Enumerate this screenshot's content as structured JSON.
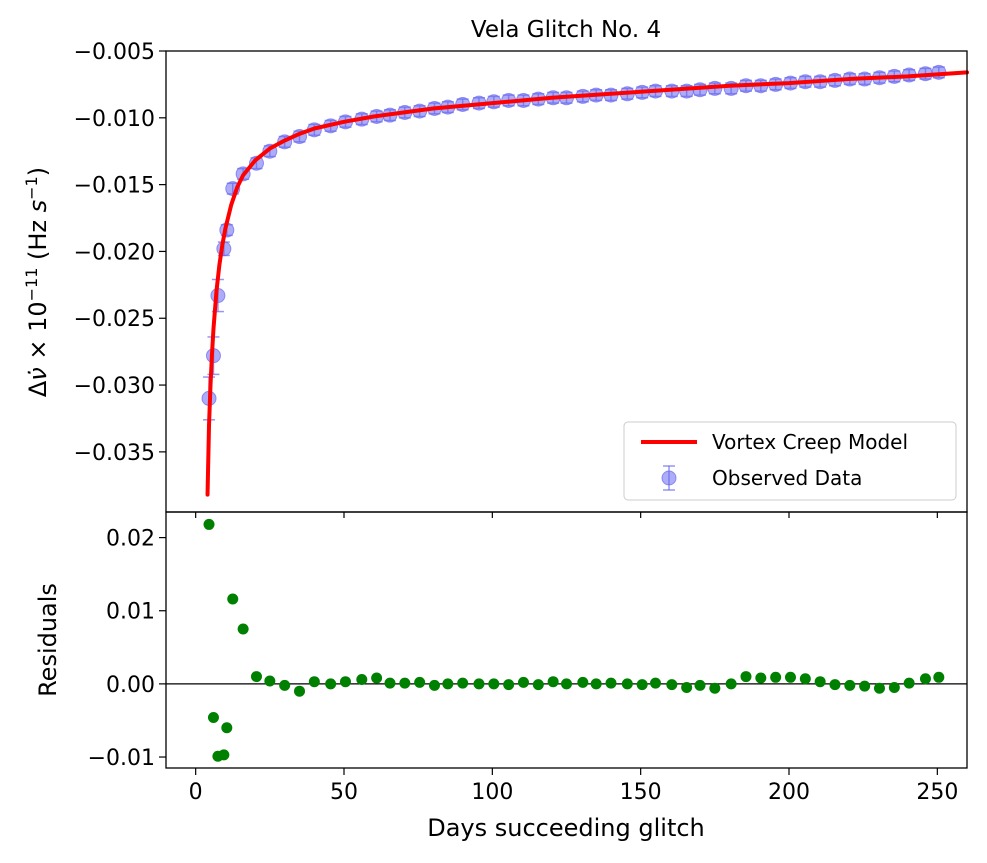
{
  "chart_data": [
    {
      "type": "scatter",
      "panel": "main",
      "title": "Vela Glitch No. 4",
      "xlabel": "Days succeeding glitch",
      "ylabel_parts": [
        "Δ",
        "ν̇",
        " × 10",
        "−11",
        " (Hz ",
        "s",
        "−1",
        ")"
      ],
      "xlim": [
        -10,
        260
      ],
      "ylim": [
        -0.0395,
        -0.005
      ],
      "yticks": [
        -0.035,
        -0.03,
        -0.025,
        -0.02,
        -0.015,
        -0.01,
        -0.005
      ],
      "ytick_labels": [
        "−0.035",
        "−0.030",
        "−0.025",
        "−0.020",
        "−0.015",
        "−0.010",
        "−0.005"
      ],
      "grid": false,
      "legend": {
        "placement": "lower-right",
        "entries": [
          "Vortex Creep Model",
          "Observed Data"
        ]
      },
      "series": [
        {
          "name": "Observed Data",
          "kind": "errorbar",
          "color": "#6a6af0",
          "x": [
            4.5,
            6,
            7.5,
            9.5,
            10.5,
            12.5,
            16,
            20.5,
            25,
            30,
            35,
            40,
            45.5,
            50.5,
            56,
            61,
            65.5,
            70.5,
            75.5,
            80.5,
            85,
            90,
            95.5,
            100.5,
            105.5,
            110.5,
            115.5,
            120.5,
            125,
            130.5,
            135,
            140,
            145.5,
            150.5,
            155,
            160.5,
            165.5,
            170,
            175,
            180.5,
            185.5,
            190.5,
            195.5,
            200.5,
            205.5,
            210.5,
            215.5,
            220.5,
            225.5,
            230.5,
            235.5,
            240.5,
            246,
            250.5
          ],
          "y": [
            -0.031,
            -0.0278,
            -0.0233,
            -0.0198,
            -0.0184,
            -0.0153,
            -0.0142,
            -0.0134,
            -0.0125,
            -0.0118,
            -0.0114,
            -0.0109,
            -0.0106,
            -0.0103,
            -0.0101,
            -0.0099,
            -0.0098,
            -0.0096,
            -0.0095,
            -0.0093,
            -0.0092,
            -0.009,
            -0.0089,
            -0.0088,
            -0.0087,
            -0.0087,
            -0.0086,
            -0.0085,
            -0.0085,
            -0.0084,
            -0.0083,
            -0.0083,
            -0.0082,
            -0.0081,
            -0.008,
            -0.008,
            -0.008,
            -0.0079,
            -0.0078,
            -0.0078,
            -0.0076,
            -0.0076,
            -0.0075,
            -0.0074,
            -0.0073,
            -0.0073,
            -0.0072,
            -0.0071,
            -0.0071,
            -0.007,
            -0.0069,
            -0.0068,
            -0.0067,
            -0.0066
          ],
          "yerr": [
            0.0016,
            0.0014,
            0.0012,
            0.0005,
            0.0004,
            0.0004,
            0.0004,
            0.0004,
            0.0004,
            0.0004,
            0.0004,
            0.0004,
            0.0004,
            0.0004,
            0.0004,
            0.0004,
            0.0004,
            0.0004,
            0.0004,
            0.0004,
            0.0004,
            0.0004,
            0.0004,
            0.0004,
            0.0004,
            0.0004,
            0.0004,
            0.0004,
            0.0004,
            0.0004,
            0.0004,
            0.0004,
            0.0004,
            0.0004,
            0.0004,
            0.0004,
            0.0004,
            0.0004,
            0.0004,
            0.0004,
            0.0004,
            0.0004,
            0.0004,
            0.0004,
            0.0004,
            0.0004,
            0.0004,
            0.0004,
            0.0004,
            0.0004,
            0.0004,
            0.0004,
            0.0004,
            0.0004
          ]
        },
        {
          "name": "Vortex Creep Model",
          "kind": "line",
          "color": "#ff0000",
          "x": [
            4,
            4.5,
            5,
            5.5,
            6,
            7,
            8,
            9,
            10,
            12,
            14,
            16,
            20,
            25,
            30,
            35,
            40,
            50,
            60,
            70,
            80,
            100,
            120,
            140,
            160,
            180,
            200,
            220,
            240,
            260
          ],
          "y": [
            -0.0382,
            -0.033,
            -0.03,
            -0.0277,
            -0.0258,
            -0.023,
            -0.021,
            -0.0195,
            -0.0183,
            -0.0165,
            -0.0152,
            -0.0143,
            -0.0132,
            -0.0123,
            -0.0117,
            -0.0112,
            -0.0108,
            -0.0103,
            -0.0099,
            -0.0096,
            -0.0093,
            -0.0089,
            -0.0085,
            -0.0082,
            -0.0079,
            -0.0076,
            -0.0074,
            -0.0071,
            -0.0069,
            -0.0066
          ]
        }
      ]
    },
    {
      "type": "scatter",
      "panel": "residuals",
      "xlabel": "Days succeeding glitch",
      "ylabel": "Residuals",
      "xlim": [
        -10,
        260
      ],
      "ylim": [
        -0.0115,
        0.0235
      ],
      "xticks": [
        0,
        50,
        100,
        150,
        200,
        250
      ],
      "xtick_labels": [
        "0",
        "50",
        "100",
        "150",
        "200",
        "250"
      ],
      "yticks": [
        -0.01,
        0.0,
        0.01,
        0.02
      ],
      "ytick_labels": [
        "−0.01",
        "0.00",
        "0.01",
        "0.02"
      ],
      "reference_line": 0,
      "grid": false,
      "series": [
        {
          "name": "Residuals",
          "color": "#008000",
          "x": [
            4.5,
            6,
            7.5,
            9.5,
            10.5,
            12.5,
            16,
            20.5,
            25,
            30,
            35,
            40,
            45.5,
            50.5,
            56,
            61,
            65.5,
            70.5,
            75.5,
            80.5,
            85,
            90,
            95.5,
            100.5,
            105.5,
            110.5,
            115.5,
            120.5,
            125,
            130.5,
            135,
            140,
            145.5,
            150.5,
            155,
            160.5,
            165.5,
            170,
            175,
            180.5,
            185.5,
            190.5,
            195.5,
            200.5,
            205.5,
            210.5,
            215.5,
            220.5,
            225.5,
            230.5,
            235.5,
            240.5,
            246,
            250.5
          ],
          "y": [
            0.0218,
            -0.0046,
            -0.0099,
            -0.0097,
            -0.006,
            0.0116,
            0.0075,
            0.001,
            0.0004,
            -0.0002,
            -0.001,
            0.0003,
            0.0,
            0.0003,
            0.0006,
            0.0008,
            0.0001,
            0.0001,
            0.0002,
            -0.0002,
            0.0,
            0.0001,
            0.0,
            0.0,
            -0.0001,
            0.0002,
            -0.0001,
            0.0003,
            0.0,
            0.0002,
            0.0,
            0.0001,
            0.0,
            -0.0001,
            0.0001,
            -0.0001,
            -0.0005,
            -0.0002,
            -0.0006,
            0.0,
            0.001,
            0.0008,
            0.0009,
            0.0009,
            0.0007,
            0.0003,
            -0.0001,
            -0.0002,
            -0.0003,
            -0.0006,
            -0.0005,
            0.0001,
            0.0007,
            0.0009
          ]
        }
      ]
    }
  ]
}
